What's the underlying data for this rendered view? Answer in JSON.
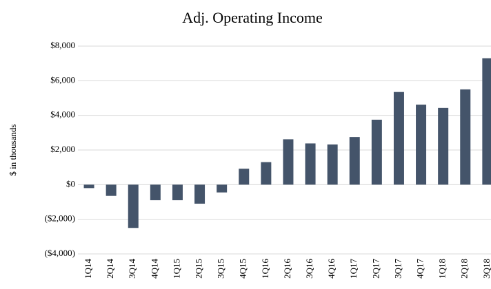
{
  "chart_data": {
    "type": "bar",
    "title": "Adj. Operating Income",
    "y_label": "$ in thousands",
    "categories": [
      "1Q14",
      "2Q14",
      "3Q14",
      "4Q14",
      "1Q15",
      "2Q15",
      "3Q15",
      "4Q15",
      "1Q16",
      "2Q16",
      "3Q16",
      "4Q16",
      "1Q17",
      "2Q17",
      "3Q17",
      "4Q17",
      "1Q18",
      "2Q18",
      "3Q18"
    ],
    "values": [
      -200,
      -650,
      -2500,
      -900,
      -900,
      -1100,
      -450,
      920,
      1300,
      2620,
      2380,
      2320,
      2750,
      3750,
      5350,
      4620,
      4430,
      5500,
      7300
    ],
    "color": "#44546a",
    "ylim": [
      -4000,
      8000
    ],
    "yticks": [
      {
        "value": -4000,
        "label": "($4,000)"
      },
      {
        "value": -2000,
        "label": "($2,000)"
      },
      {
        "value": 0,
        "label": "$0"
      },
      {
        "value": 2000,
        "label": "$2,000"
      },
      {
        "value": 4000,
        "label": "$4,000"
      },
      {
        "value": 6000,
        "label": "$6,000"
      },
      {
        "value": 8000,
        "label": "$8,000"
      }
    ],
    "grid": true
  }
}
